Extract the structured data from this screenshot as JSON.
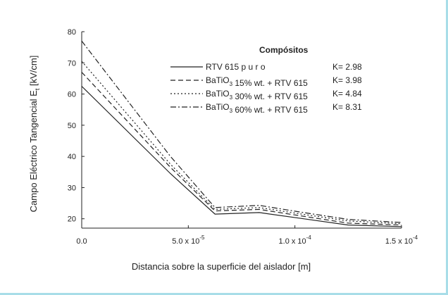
{
  "colors": {
    "frame_border": "#a8dde8",
    "axis": "#222222",
    "series": "#222222"
  },
  "chart_data": {
    "type": "line",
    "xlabel": "Distancia sobre la superficie del aislador [m]",
    "ylabel": {
      "main": "Campo Eléctrico Tangencial E",
      "subscript": "t",
      "unit": " [kV/cm]"
    },
    "xlim": [
      0,
      0.00015
    ],
    "ylim": [
      17,
      80
    ],
    "x_ticks": [
      {
        "value": 0,
        "mantissa": "0.0",
        "exp": ""
      },
      {
        "value": 5e-05,
        "mantissa": "5.0 x 10",
        "exp": "-5"
      },
      {
        "value": 0.0001,
        "mantissa": "1.0 x 10",
        "exp": "-4"
      },
      {
        "value": 0.00015,
        "mantissa": "1.5 x 10",
        "exp": "-4"
      }
    ],
    "y_ticks": [
      20,
      30,
      40,
      50,
      60,
      70,
      80
    ],
    "grid": false,
    "legend": {
      "title": "Compósitos",
      "placement": "top-right",
      "entries": [
        {
          "parts": [
            {
              "t": "RTV 615  p u r o"
            }
          ],
          "k": "K= 2.98",
          "dash": "solid"
        },
        {
          "parts": [
            {
              "t": "BaTiO"
            },
            {
              "t": "3",
              "sub": true
            },
            {
              "t": "  15% wt. + RTV 615"
            }
          ],
          "k": "K= 3.98",
          "dash": "dash"
        },
        {
          "parts": [
            {
              "t": "BaTiO"
            },
            {
              "t": "3",
              "sub": true
            },
            {
              "t": "  30% wt. + RTV 615"
            }
          ],
          "k": "K= 4.84",
          "dash": "dot"
        },
        {
          "parts": [
            {
              "t": "BaTiO"
            },
            {
              "t": "3",
              "sub": true
            },
            {
              "t": "  60% wt. + RTV 615"
            }
          ],
          "k": "K= 8.31",
          "dash": "dashdot"
        }
      ]
    },
    "series": [
      {
        "x": [
          0,
          4.16e-05,
          6.25e-05,
          8.33e-05,
          0.000104,
          0.000125,
          0.00015
        ],
        "values": [
          62.5,
          34.5,
          21.5,
          22.0,
          20.0,
          18.0,
          17.5
        ]
      },
      {
        "x": [
          0,
          4.16e-05,
          6.25e-05,
          8.33e-05,
          0.000104,
          0.000125,
          0.00015
        ],
        "values": [
          67.0,
          36.5,
          22.5,
          23.0,
          20.8,
          18.6,
          18.0
        ]
      },
      {
        "x": [
          0,
          4.16e-05,
          6.25e-05,
          8.33e-05,
          0.000104,
          0.000125,
          0.00015
        ],
        "values": [
          70.5,
          37.5,
          23.0,
          23.6,
          21.4,
          19.3,
          18.4
        ]
      },
      {
        "x": [
          0,
          4.16e-05,
          6.25e-05,
          8.33e-05,
          0.000104,
          0.000125,
          0.00015
        ],
        "values": [
          77.0,
          40.0,
          23.6,
          24.3,
          22.0,
          19.8,
          18.8
        ]
      }
    ]
  }
}
